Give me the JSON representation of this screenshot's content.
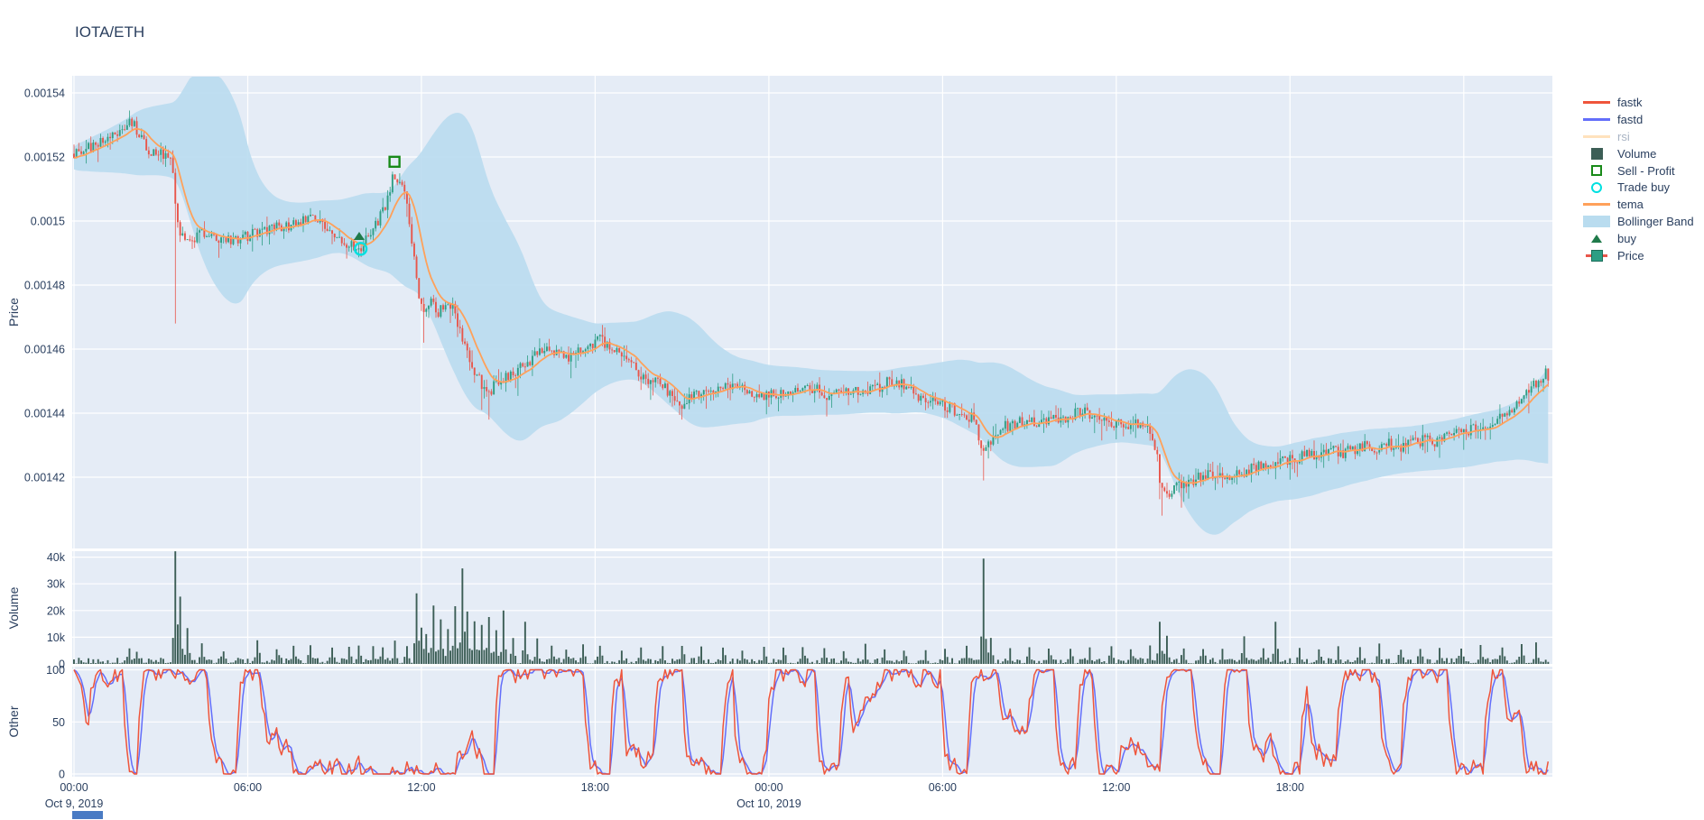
{
  "title": "IOTA/ETH",
  "colors": {
    "up": "#2E9E84",
    "down": "#E8564B",
    "tema": "#FFA15A",
    "fastk": "#EF553B",
    "fastd": "#636EFA",
    "band": "#B9DCEF",
    "volume": "#3C5E56",
    "buy": "#1F7A4A",
    "sell": "#188A18",
    "trade_buy": "#00E0E0",
    "text": "#2A3F5F",
    "muted_text": "#A9B4C4",
    "rsi": "#FFE2BD",
    "plot_bg": "#E5ECF6",
    "grid": "#FFFFFF",
    "slider_fragment": "#4A7BC4"
  },
  "axes": {
    "price": {
      "title": "Price",
      "tick_values": [
        0.00154,
        0.00152,
        0.0015,
        0.00148,
        0.00146,
        0.00144,
        0.00142
      ],
      "tick_labels": [
        "0.00154",
        "0.00152",
        "0.0015",
        "0.00148",
        "0.00146",
        "0.00144",
        "0.00142"
      ]
    },
    "volume": {
      "title": "Volume",
      "tick_values": [
        40000,
        30000,
        20000,
        10000,
        0
      ],
      "tick_labels": [
        "40k",
        "30k",
        "20k",
        "10k",
        "0"
      ]
    },
    "other": {
      "title": "Other",
      "tick_values": [
        100,
        50,
        0
      ],
      "tick_labels": [
        "100",
        "50",
        "0"
      ]
    },
    "x": {
      "tick_hours": [
        0,
        6,
        12,
        18,
        24,
        30,
        36,
        42
      ],
      "grid_hours": [
        0,
        6,
        12,
        18,
        24,
        30,
        36,
        42,
        48
      ],
      "tick_labels": [
        "00:00",
        "06:00",
        "12:00",
        "18:00",
        "00:00",
        "06:00",
        "12:00",
        "18:00"
      ],
      "date_labels": [
        {
          "hour": 0,
          "label": "Oct 9, 2019"
        },
        {
          "hour": 24,
          "label": "Oct 10, 2019"
        }
      ]
    }
  },
  "legend": {
    "items": [
      {
        "label": "fastk",
        "type": "line",
        "color": "#EF553B",
        "muted": false
      },
      {
        "label": "fastd",
        "type": "line",
        "color": "#636EFA",
        "muted": false
      },
      {
        "label": "rsi",
        "type": "line",
        "color": "#FFE2BD",
        "muted": true
      },
      {
        "label": "Volume",
        "type": "square",
        "color": "#3C5E56",
        "muted": false
      },
      {
        "label": "Sell - Profit",
        "type": "square-open",
        "color": "#188A18",
        "muted": false
      },
      {
        "label": "Trade buy",
        "type": "circle-open",
        "color": "#00E0E0",
        "muted": false
      },
      {
        "label": "tema",
        "type": "line",
        "color": "#FFA15A",
        "muted": false
      },
      {
        "label": "Bollinger Band",
        "type": "band",
        "color": "#B9DCEF",
        "muted": false
      },
      {
        "label": "buy",
        "type": "triangle",
        "color": "#1F7A4A",
        "muted": false
      },
      {
        "label": "Price",
        "type": "candle",
        "color": "#2E9E84",
        "color2": "#E8564B",
        "muted": false
      }
    ]
  },
  "chart_data": [
    {
      "type": "candlestick",
      "name": "Price",
      "pane": "price",
      "x_start": "2019-10-09 00:00",
      "hours_span": 51,
      "candle_minutes": 5,
      "ylim": [
        0.001398,
        0.0015455
      ],
      "seed": 20191009,
      "price_anchors": [
        [
          0,
          0.001521
        ],
        [
          0.3,
          0.0015225
        ],
        [
          0.6,
          0.001523
        ],
        [
          0.9,
          0.0015245
        ],
        [
          1.2,
          0.001526
        ],
        [
          1.5,
          0.001528
        ],
        [
          1.75,
          0.0015295
        ],
        [
          2.0,
          0.0015305
        ],
        [
          2.2,
          0.001528
        ],
        [
          2.4,
          0.0015245
        ],
        [
          2.6,
          0.001522
        ],
        [
          2.9,
          0.0015215
        ],
        [
          3.2,
          0.0015205
        ],
        [
          3.35,
          0.001519
        ],
        [
          3.45,
          0.001512
        ],
        [
          3.55,
          0.0015
        ],
        [
          3.7,
          0.001496
        ],
        [
          3.9,
          0.0014935
        ],
        [
          4.2,
          0.001495
        ],
        [
          4.6,
          0.0014965
        ],
        [
          5.0,
          0.001495
        ],
        [
          5.5,
          0.0014935
        ],
        [
          5.9,
          0.001495
        ],
        [
          6.3,
          0.0014965
        ],
        [
          6.7,
          0.001497
        ],
        [
          7.1,
          0.0014985
        ],
        [
          7.5,
          0.001499
        ],
        [
          7.9,
          0.0015
        ],
        [
          8.2,
          0.0015015
        ],
        [
          8.5,
          0.0015
        ],
        [
          8.8,
          0.001497
        ],
        [
          9.2,
          0.0014945
        ],
        [
          9.5,
          0.001493
        ],
        [
          9.85,
          0.0014915
        ],
        [
          10.1,
          0.001494
        ],
        [
          10.35,
          0.001497
        ],
        [
          10.6,
          0.0015025
        ],
        [
          10.85,
          0.001507
        ],
        [
          11.05,
          0.001515
        ],
        [
          11.25,
          0.001511
        ],
        [
          11.45,
          0.0015075
        ],
        [
          11.6,
          0.001498
        ],
        [
          11.75,
          0.001488
        ],
        [
          11.9,
          0.001478
        ],
        [
          12.1,
          0.00147
        ],
        [
          12.35,
          0.0014755
        ],
        [
          12.6,
          0.0014715
        ],
        [
          12.85,
          0.001474
        ],
        [
          13.05,
          0.0014735
        ],
        [
          13.3,
          0.001466
        ],
        [
          13.6,
          0.001458
        ],
        [
          13.9,
          0.0014525
        ],
        [
          14.15,
          0.0014475
        ],
        [
          14.3,
          0.0014455
        ],
        [
          14.55,
          0.001449
        ],
        [
          14.8,
          0.0014505
        ],
        [
          15.1,
          0.0014515
        ],
        [
          15.5,
          0.0014555
        ],
        [
          15.9,
          0.0014575
        ],
        [
          16.3,
          0.0014595
        ],
        [
          16.7,
          0.001458
        ],
        [
          17.1,
          0.0014575
        ],
        [
          17.5,
          0.0014595
        ],
        [
          17.9,
          0.0014615
        ],
        [
          18.2,
          0.001463
        ],
        [
          18.55,
          0.0014605
        ],
        [
          18.9,
          0.0014585
        ],
        [
          19.3,
          0.001455
        ],
        [
          19.7,
          0.001451
        ],
        [
          20.1,
          0.0014495
        ],
        [
          20.5,
          0.001447
        ],
        [
          20.8,
          0.001444
        ],
        [
          21.0,
          0.0014425
        ],
        [
          21.3,
          0.0014445
        ],
        [
          21.7,
          0.001446
        ],
        [
          22.1,
          0.0014475
        ],
        [
          22.5,
          0.0014495
        ],
        [
          22.9,
          0.001448
        ],
        [
          23.3,
          0.0014465
        ],
        [
          23.7,
          0.001445
        ],
        [
          24.1,
          0.0014455
        ],
        [
          24.5,
          0.0014465
        ],
        [
          24.9,
          0.001448
        ],
        [
          25.3,
          0.0014485
        ],
        [
          25.7,
          0.001447
        ],
        [
          26.1,
          0.0014455
        ],
        [
          26.5,
          0.001446
        ],
        [
          26.9,
          0.0014475
        ],
        [
          27.3,
          0.0014465
        ],
        [
          27.7,
          0.0014475
        ],
        [
          28.1,
          0.0014495
        ],
        [
          28.45,
          0.00145
        ],
        [
          28.8,
          0.0014475
        ],
        [
          29.2,
          0.001445
        ],
        [
          29.6,
          0.0014435
        ],
        [
          30.0,
          0.0014425
        ],
        [
          30.4,
          0.001441
        ],
        [
          30.8,
          0.0014395
        ],
        [
          31.1,
          0.001438
        ],
        [
          31.35,
          0.001428
        ],
        [
          31.55,
          0.00143
        ],
        [
          31.8,
          0.0014335
        ],
        [
          32.1,
          0.0014355
        ],
        [
          32.5,
          0.001437
        ],
        [
          32.9,
          0.001438
        ],
        [
          33.3,
          0.0014365
        ],
        [
          33.7,
          0.0014375
        ],
        [
          34.1,
          0.0014385
        ],
        [
          34.5,
          0.0014395
        ],
        [
          34.85,
          0.001441
        ],
        [
          35.2,
          0.0014395
        ],
        [
          35.6,
          0.001438
        ],
        [
          36.0,
          0.0014365
        ],
        [
          36.4,
          0.001436
        ],
        [
          36.8,
          0.0014365
        ],
        [
          37.1,
          0.0014345
        ],
        [
          37.35,
          0.00143
        ],
        [
          37.5,
          0.00142
        ],
        [
          37.7,
          0.001414
        ],
        [
          37.9,
          0.0014155
        ],
        [
          38.2,
          0.0014175
        ],
        [
          38.6,
          0.001419
        ],
        [
          39.0,
          0.0014205
        ],
        [
          39.4,
          0.0014215
        ],
        [
          39.8,
          0.001421
        ],
        [
          40.2,
          0.0014205
        ],
        [
          40.6,
          0.0014225
        ],
        [
          41.0,
          0.0014235
        ],
        [
          41.4,
          0.0014245
        ],
        [
          41.8,
          0.001425
        ],
        [
          42.2,
          0.0014255
        ],
        [
          42.6,
          0.001427
        ],
        [
          43.0,
          0.0014275
        ],
        [
          43.4,
          0.0014285
        ],
        [
          43.8,
          0.0014275
        ],
        [
          44.2,
          0.0014285
        ],
        [
          44.6,
          0.0014295
        ],
        [
          45.0,
          0.0014295
        ],
        [
          45.4,
          0.0014305
        ],
        [
          45.8,
          0.0014295
        ],
        [
          46.2,
          0.0014305
        ],
        [
          46.6,
          0.0014315
        ],
        [
          47.0,
          0.001431
        ],
        [
          47.4,
          0.0014325
        ],
        [
          47.8,
          0.0014335
        ],
        [
          48.2,
          0.0014345
        ],
        [
          48.6,
          0.0014355
        ],
        [
          49.0,
          0.0014375
        ],
        [
          49.4,
          0.0014395
        ],
        [
          49.7,
          0.001442
        ],
        [
          50.0,
          0.0014445
        ],
        [
          50.3,
          0.0014475
        ],
        [
          50.6,
          0.0014505
        ],
        [
          50.8,
          0.0014525
        ],
        [
          51.0,
          0.001451
        ]
      ],
      "wick_lows": [
        [
          3.5,
          0.001468
        ],
        [
          12.1,
          0.001462
        ],
        [
          14.3,
          0.001438
        ],
        [
          21.0,
          0.001438
        ],
        [
          31.4,
          0.001419
        ],
        [
          37.6,
          0.001408
        ]
      ]
    },
    {
      "type": "line",
      "name": "tema",
      "pane": "price",
      "derivation": "double EMA of close, alpha 0.28"
    },
    {
      "type": "area",
      "name": "Bollinger Band",
      "pane": "price",
      "derivation": "rolling mean +/- 2.6 std, window 30"
    },
    {
      "type": "line",
      "name": "rsi",
      "pane": "price",
      "visible": false
    },
    {
      "type": "bar",
      "name": "Volume",
      "pane": "volume",
      "ylim": [
        0,
        42000
      ],
      "base_noise_range": [
        150,
        2300
      ],
      "volume_events": [
        [
          1.9,
          5200
        ],
        [
          2.2,
          4200
        ],
        [
          3.5,
          40500
        ],
        [
          3.7,
          24200
        ],
        [
          3.95,
          12400
        ],
        [
          4.4,
          6800
        ],
        [
          5.2,
          4200
        ],
        [
          6.3,
          8400
        ],
        [
          7.0,
          4600
        ],
        [
          7.6,
          5200
        ],
        [
          8.2,
          6800
        ],
        [
          8.9,
          4400
        ],
        [
          9.5,
          5400
        ],
        [
          9.85,
          6600
        ],
        [
          10.3,
          5000
        ],
        [
          10.7,
          5600
        ],
        [
          11.05,
          7800
        ],
        [
          11.5,
          6200
        ],
        [
          11.8,
          25600
        ],
        [
          12.0,
          13200
        ],
        [
          12.2,
          11000
        ],
        [
          12.45,
          19600
        ],
        [
          12.7,
          16400
        ],
        [
          12.9,
          12800
        ],
        [
          13.15,
          21000
        ],
        [
          13.4,
          35600
        ],
        [
          13.6,
          18400
        ],
        [
          13.85,
          15600
        ],
        [
          14.1,
          14200
        ],
        [
          14.35,
          17400
        ],
        [
          14.6,
          12400
        ],
        [
          14.85,
          17800
        ],
        [
          15.2,
          9400
        ],
        [
          15.6,
          13600
        ],
        [
          16.0,
          8200
        ],
        [
          16.5,
          6400
        ],
        [
          17.0,
          5200
        ],
        [
          17.6,
          5800
        ],
        [
          18.2,
          5400
        ],
        [
          18.9,
          4800
        ],
        [
          19.6,
          5600
        ],
        [
          20.3,
          5000
        ],
        [
          21.0,
          6400
        ],
        [
          21.7,
          4800
        ],
        [
          22.4,
          5400
        ],
        [
          23.1,
          4600
        ],
        [
          23.8,
          5200
        ],
        [
          24.5,
          5800
        ],
        [
          25.2,
          4400
        ],
        [
          25.9,
          5000
        ],
        [
          26.6,
          4600
        ],
        [
          27.3,
          5400
        ],
        [
          28.0,
          5000
        ],
        [
          28.7,
          4600
        ],
        [
          29.4,
          4200
        ],
        [
          30.1,
          4800
        ],
        [
          30.8,
          5400
        ],
        [
          31.4,
          38800
        ],
        [
          31.65,
          9400
        ],
        [
          32.3,
          4600
        ],
        [
          33.0,
          5200
        ],
        [
          33.7,
          4800
        ],
        [
          34.4,
          5400
        ],
        [
          35.1,
          5000
        ],
        [
          35.8,
          4600
        ],
        [
          36.5,
          5200
        ],
        [
          37.15,
          5600
        ],
        [
          37.5,
          15400
        ],
        [
          37.75,
          10200
        ],
        [
          38.3,
          5600
        ],
        [
          39.0,
          5200
        ],
        [
          39.7,
          4800
        ],
        [
          40.4,
          9000
        ],
        [
          41.1,
          5400
        ],
        [
          41.5,
          15600
        ],
        [
          42.3,
          5600
        ],
        [
          43.0,
          5000
        ],
        [
          43.7,
          5400
        ],
        [
          44.4,
          5200
        ],
        [
          45.1,
          5600
        ],
        [
          45.8,
          5000
        ],
        [
          46.5,
          5400
        ],
        [
          47.2,
          5800
        ],
        [
          47.9,
          5400
        ],
        [
          48.6,
          6200
        ],
        [
          49.3,
          6000
        ],
        [
          50.0,
          7000
        ],
        [
          50.5,
          7600
        ]
      ]
    },
    {
      "type": "line",
      "name": "fastk",
      "pane": "other",
      "ylim": [
        0,
        100
      ],
      "derivation": "stochastic oscillator, clipped 0-100"
    },
    {
      "type": "line",
      "name": "fastd",
      "pane": "other",
      "ylim": [
        0,
        100
      ],
      "derivation": "3-bar average of fastk"
    }
  ],
  "markers": {
    "buy": {
      "hour": 9.85,
      "price": 0.0014952,
      "shape": "triangle-up"
    },
    "trade_buy": {
      "hour": 9.9,
      "price": 0.0014913,
      "shape": "circle-open"
    },
    "sell_profit": {
      "hour": 11.07,
      "price": 0.0015185,
      "shape": "square-open"
    }
  }
}
